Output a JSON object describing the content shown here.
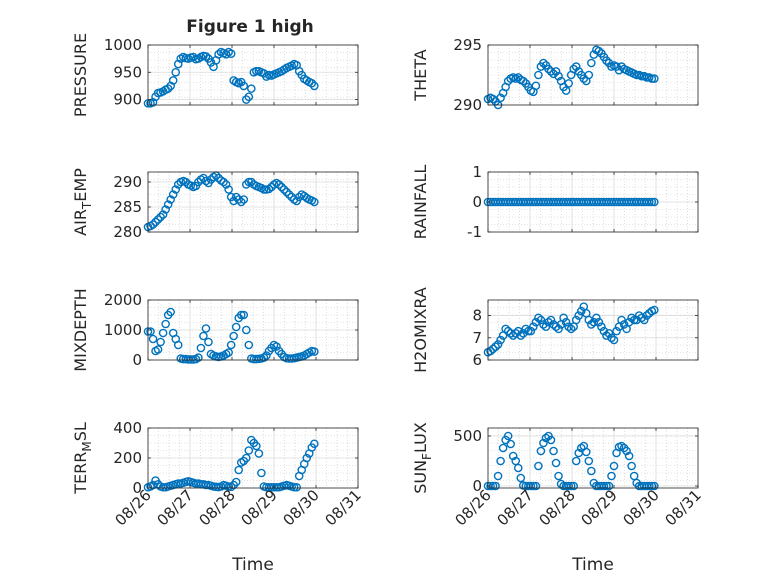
{
  "figure_title": "Figure 1 high",
  "x_tick_labels": [
    "08/26",
    "08/27",
    "08/28",
    "08/29",
    "08/30",
    "08/31"
  ],
  "x_axis_label": "Time",
  "marker_color": "#0072BD",
  "chart_data": [
    {
      "type": "scatter",
      "title": "Figure 1 high",
      "ylabel": "PRESSURE",
      "ylim": [
        890,
        1000
      ],
      "yticks": [
        900,
        950,
        1000
      ],
      "xticks": [
        0,
        1,
        2,
        3,
        4,
        5
      ],
      "xlim": [
        0,
        5
      ],
      "grid": true,
      "x": [
        0.0,
        0.06,
        0.12,
        0.18,
        0.24,
        0.3,
        0.36,
        0.42,
        0.48,
        0.54,
        0.6,
        0.66,
        0.72,
        0.78,
        0.84,
        0.9,
        0.96,
        1.02,
        1.08,
        1.14,
        1.2,
        1.26,
        1.32,
        1.38,
        1.44,
        1.5,
        1.56,
        1.62,
        1.68,
        1.74,
        1.8,
        1.86,
        1.92,
        1.98,
        2.04,
        2.1,
        2.16,
        2.22,
        2.28,
        2.34,
        2.4,
        2.46,
        2.52,
        2.58,
        2.64,
        2.7,
        2.76,
        2.82,
        2.88,
        2.94,
        3.0,
        3.06,
        3.12,
        3.18,
        3.24,
        3.3,
        3.36,
        3.42,
        3.48,
        3.54,
        3.6,
        3.66,
        3.72,
        3.78,
        3.84,
        3.9,
        3.96
      ],
      "y": [
        893,
        893,
        895,
        905,
        912,
        913,
        915,
        918,
        920,
        925,
        935,
        950,
        965,
        975,
        978,
        976,
        975,
        977,
        978,
        974,
        975,
        978,
        980,
        979,
        975,
        968,
        960,
        972,
        983,
        987,
        985,
        983,
        987,
        984,
        935,
        932,
        930,
        932,
        925,
        900,
        905,
        920,
        950,
        952,
        952,
        950,
        948,
        942,
        945,
        944,
        946,
        948,
        950,
        952,
        955,
        958,
        960,
        962,
        965,
        963,
        952,
        945,
        938,
        935,
        932,
        930,
        925
      ]
    },
    {
      "type": "scatter",
      "ylabel": "THETA",
      "ylim": [
        290,
        295
      ],
      "yticks": [
        290,
        295
      ],
      "xticks": [
        0,
        1,
        2,
        3,
        4,
        5
      ],
      "xlim": [
        0,
        5
      ],
      "grid": true,
      "x": [
        0.0,
        0.06,
        0.12,
        0.18,
        0.24,
        0.3,
        0.36,
        0.42,
        0.48,
        0.54,
        0.6,
        0.66,
        0.72,
        0.78,
        0.84,
        0.9,
        0.96,
        1.02,
        1.08,
        1.14,
        1.2,
        1.26,
        1.32,
        1.38,
        1.44,
        1.5,
        1.56,
        1.62,
        1.68,
        1.74,
        1.8,
        1.86,
        1.92,
        1.98,
        2.04,
        2.1,
        2.16,
        2.22,
        2.28,
        2.34,
        2.4,
        2.46,
        2.52,
        2.58,
        2.64,
        2.7,
        2.76,
        2.82,
        2.88,
        2.94,
        3.0,
        3.06,
        3.12,
        3.18,
        3.24,
        3.3,
        3.36,
        3.42,
        3.48,
        3.54,
        3.6,
        3.66,
        3.72,
        3.78,
        3.84,
        3.9,
        3.96
      ],
      "y": [
        290.5,
        290.6,
        290.5,
        290.3,
        290.0,
        290.6,
        291.0,
        291.5,
        292.0,
        292.2,
        292.3,
        292.2,
        292.3,
        292.1,
        292.0,
        291.8,
        291.5,
        291.2,
        291.1,
        291.6,
        292.5,
        293.2,
        293.5,
        293.3,
        293.0,
        292.8,
        292.6,
        292.8,
        292.4,
        292.0,
        291.5,
        291.2,
        291.8,
        292.5,
        293.0,
        293.2,
        292.8,
        292.5,
        292.2,
        292.0,
        292.5,
        293.5,
        294.2,
        294.6,
        294.5,
        294.3,
        294.0,
        293.7,
        293.5,
        293.2,
        293.3,
        293.2,
        292.9,
        293.2,
        293.0,
        292.9,
        292.8,
        292.7,
        292.6,
        292.5,
        292.5,
        292.4,
        292.4,
        292.3,
        292.3,
        292.2,
        292.2
      ]
    },
    {
      "type": "scatter",
      "ylabel": "AIR_TEMP",
      "ylim": [
        280,
        292
      ],
      "yticks": [
        280,
        285,
        290
      ],
      "xticks": [
        0,
        1,
        2,
        3,
        4,
        5
      ],
      "xlim": [
        0,
        5
      ],
      "grid": true,
      "x": [
        0.0,
        0.06,
        0.12,
        0.18,
        0.24,
        0.3,
        0.36,
        0.42,
        0.48,
        0.54,
        0.6,
        0.66,
        0.72,
        0.78,
        0.84,
        0.9,
        0.96,
        1.02,
        1.08,
        1.14,
        1.2,
        1.26,
        1.32,
        1.38,
        1.44,
        1.5,
        1.56,
        1.62,
        1.68,
        1.74,
        1.8,
        1.86,
        1.92,
        1.98,
        2.04,
        2.1,
        2.16,
        2.22,
        2.28,
        2.34,
        2.4,
        2.46,
        2.52,
        2.58,
        2.64,
        2.7,
        2.76,
        2.82,
        2.88,
        2.94,
        3.0,
        3.06,
        3.12,
        3.18,
        3.24,
        3.3,
        3.36,
        3.42,
        3.48,
        3.54,
        3.6,
        3.66,
        3.72,
        3.78,
        3.84,
        3.9,
        3.96
      ],
      "y": [
        281.0,
        281.2,
        281.5,
        282.0,
        282.5,
        283.0,
        283.5,
        284.5,
        285.5,
        286.5,
        287.5,
        288.5,
        289.5,
        290.0,
        290.2,
        290.0,
        289.5,
        289.3,
        289.0,
        289.2,
        290.0,
        290.5,
        290.8,
        290.2,
        289.8,
        290.5,
        291.0,
        291.3,
        290.8,
        290.3,
        290.0,
        289.5,
        288.5,
        287.0,
        286.2,
        287.0,
        286.5,
        286.0,
        286.5,
        289.5,
        290.0,
        290.0,
        289.5,
        289.2,
        289.0,
        288.8,
        288.5,
        288.5,
        288.6,
        289.0,
        289.5,
        289.8,
        289.5,
        289.0,
        288.5,
        288.0,
        287.5,
        287.0,
        286.5,
        286.2,
        287.0,
        287.5,
        287.2,
        286.8,
        286.5,
        286.3,
        286.0
      ]
    },
    {
      "type": "scatter",
      "ylabel": "RAINFALL",
      "ylim": [
        -1,
        1
      ],
      "yticks": [
        -1,
        0,
        1
      ],
      "xticks": [
        0,
        1,
        2,
        3,
        4,
        5
      ],
      "xlim": [
        0,
        5
      ],
      "grid": true,
      "x": [
        0.0,
        0.06,
        0.12,
        0.18,
        0.24,
        0.3,
        0.36,
        0.42,
        0.48,
        0.54,
        0.6,
        0.66,
        0.72,
        0.78,
        0.84,
        0.9,
        0.96,
        1.02,
        1.08,
        1.14,
        1.2,
        1.26,
        1.32,
        1.38,
        1.44,
        1.5,
        1.56,
        1.62,
        1.68,
        1.74,
        1.8,
        1.86,
        1.92,
        1.98,
        2.04,
        2.1,
        2.16,
        2.22,
        2.28,
        2.34,
        2.4,
        2.46,
        2.52,
        2.58,
        2.64,
        2.7,
        2.76,
        2.82,
        2.88,
        2.94,
        3.0,
        3.06,
        3.12,
        3.18,
        3.24,
        3.3,
        3.36,
        3.42,
        3.48,
        3.54,
        3.6,
        3.66,
        3.72,
        3.78,
        3.84,
        3.9,
        3.96
      ],
      "y": [
        0,
        0,
        0,
        0,
        0,
        0,
        0,
        0,
        0,
        0,
        0,
        0,
        0,
        0,
        0,
        0,
        0,
        0,
        0,
        0,
        0,
        0,
        0,
        0,
        0,
        0,
        0,
        0,
        0,
        0,
        0,
        0,
        0,
        0,
        0,
        0,
        0,
        0,
        0,
        0,
        0,
        0,
        0,
        0,
        0,
        0,
        0,
        0,
        0,
        0,
        0,
        0,
        0,
        0,
        0,
        0,
        0,
        0,
        0,
        0,
        0,
        0,
        0,
        0,
        0,
        0,
        0
      ]
    },
    {
      "type": "scatter",
      "ylabel": "MIXDEPTH",
      "ylim": [
        0,
        2000
      ],
      "yticks": [
        0,
        1000,
        2000
      ],
      "xticks": [
        0,
        1,
        2,
        3,
        4,
        5
      ],
      "xlim": [
        0,
        5
      ],
      "grid": true,
      "x": [
        0.0,
        0.06,
        0.12,
        0.18,
        0.24,
        0.3,
        0.36,
        0.42,
        0.48,
        0.54,
        0.6,
        0.66,
        0.72,
        0.78,
        0.84,
        0.9,
        0.96,
        1.02,
        1.08,
        1.14,
        1.2,
        1.26,
        1.32,
        1.38,
        1.44,
        1.5,
        1.56,
        1.62,
        1.68,
        1.74,
        1.8,
        1.86,
        1.92,
        1.98,
        2.04,
        2.1,
        2.16,
        2.22,
        2.28,
        2.34,
        2.4,
        2.46,
        2.52,
        2.58,
        2.64,
        2.7,
        2.76,
        2.82,
        2.88,
        2.94,
        3.0,
        3.06,
        3.12,
        3.18,
        3.24,
        3.3,
        3.36,
        3.42,
        3.48,
        3.54,
        3.6,
        3.66,
        3.72,
        3.78,
        3.84,
        3.9,
        3.96
      ],
      "y": [
        950,
        950,
        700,
        300,
        350,
        600,
        900,
        1200,
        1500,
        1600,
        900,
        700,
        500,
        50,
        30,
        30,
        20,
        20,
        20,
        30,
        80,
        400,
        800,
        1050,
        600,
        200,
        150,
        120,
        100,
        120,
        150,
        200,
        250,
        500,
        800,
        1100,
        1400,
        1500,
        1500,
        1000,
        500,
        50,
        30,
        30,
        40,
        50,
        80,
        150,
        300,
        400,
        500,
        450,
        300,
        200,
        100,
        60,
        50,
        50,
        60,
        80,
        100,
        120,
        150,
        200,
        250,
        300,
        280
      ]
    },
    {
      "type": "scatter",
      "ylabel": "H2OMIXRA",
      "ylim": [
        6,
        8.7
      ],
      "yticks": [
        6,
        7,
        8
      ],
      "xticks": [
        0,
        1,
        2,
        3,
        4,
        5
      ],
      "xlim": [
        0,
        5
      ],
      "grid": true,
      "x": [
        0.0,
        0.06,
        0.12,
        0.18,
        0.24,
        0.3,
        0.36,
        0.42,
        0.48,
        0.54,
        0.6,
        0.66,
        0.72,
        0.78,
        0.84,
        0.9,
        0.96,
        1.02,
        1.08,
        1.14,
        1.2,
        1.26,
        1.32,
        1.38,
        1.44,
        1.5,
        1.56,
        1.62,
        1.68,
        1.74,
        1.8,
        1.86,
        1.92,
        1.98,
        2.04,
        2.1,
        2.16,
        2.22,
        2.28,
        2.34,
        2.4,
        2.46,
        2.52,
        2.58,
        2.64,
        2.7,
        2.76,
        2.82,
        2.88,
        2.94,
        3.0,
        3.06,
        3.12,
        3.18,
        3.24,
        3.3,
        3.36,
        3.42,
        3.48,
        3.54,
        3.6,
        3.66,
        3.72,
        3.78,
        3.84,
        3.9,
        3.96
      ],
      "y": [
        6.35,
        6.4,
        6.5,
        6.6,
        6.7,
        6.9,
        7.1,
        7.4,
        7.3,
        7.2,
        7.1,
        7.2,
        7.3,
        7.1,
        7.2,
        7.4,
        7.3,
        7.3,
        7.5,
        7.7,
        7.9,
        7.8,
        7.6,
        7.5,
        7.7,
        7.8,
        7.6,
        7.5,
        7.4,
        7.6,
        7.9,
        7.7,
        7.5,
        7.4,
        7.5,
        7.8,
        8.0,
        8.2,
        8.4,
        8.1,
        7.8,
        7.6,
        7.7,
        7.9,
        7.7,
        7.5,
        7.3,
        7.1,
        7.2,
        7.0,
        6.9,
        7.3,
        7.5,
        7.8,
        7.6,
        7.4,
        7.7,
        7.9,
        7.8,
        7.8,
        8.0,
        7.9,
        7.8,
        8.0,
        8.1,
        8.2,
        8.25
      ]
    },
    {
      "type": "scatter",
      "ylabel": "TERR_MSL",
      "ylim": [
        0,
        400
      ],
      "yticks": [
        0,
        200,
        400
      ],
      "xticks": [
        0,
        1,
        2,
        3,
        4,
        5
      ],
      "xlim": [
        0,
        5
      ],
      "grid": true,
      "x": [
        0.0,
        0.06,
        0.12,
        0.18,
        0.24,
        0.3,
        0.36,
        0.42,
        0.48,
        0.54,
        0.6,
        0.66,
        0.72,
        0.78,
        0.84,
        0.9,
        0.96,
        1.02,
        1.08,
        1.14,
        1.2,
        1.26,
        1.32,
        1.38,
        1.44,
        1.5,
        1.56,
        1.62,
        1.68,
        1.74,
        1.8,
        1.86,
        1.92,
        1.98,
        2.04,
        2.1,
        2.16,
        2.22,
        2.28,
        2.34,
        2.4,
        2.46,
        2.52,
        2.58,
        2.64,
        2.7,
        2.76,
        2.82,
        2.88,
        2.94,
        3.0,
        3.06,
        3.12,
        3.18,
        3.24,
        3.3,
        3.36,
        3.42,
        3.48,
        3.54,
        3.6,
        3.66,
        3.72,
        3.78,
        3.84,
        3.9,
        3.96
      ],
      "y": [
        5,
        10,
        20,
        50,
        25,
        10,
        5,
        5,
        10,
        15,
        20,
        25,
        30,
        30,
        35,
        40,
        45,
        40,
        35,
        30,
        30,
        25,
        25,
        20,
        20,
        15,
        10,
        8,
        6,
        10,
        20,
        15,
        10,
        8,
        20,
        40,
        120,
        170,
        180,
        200,
        250,
        320,
        300,
        280,
        230,
        100,
        10,
        5,
        5,
        5,
        5,
        5,
        5,
        10,
        15,
        20,
        15,
        10,
        5,
        5,
        80,
        120,
        160,
        200,
        230,
        270,
        295
      ]
    },
    {
      "type": "scatter",
      "ylabel": "SUN_FLUX",
      "ylim": [
        -20,
        580
      ],
      "yticks": [
        0,
        500
      ],
      "xticks": [
        0,
        1,
        2,
        3,
        4,
        5
      ],
      "xlim": [
        0,
        5
      ],
      "grid": true,
      "x": [
        0.0,
        0.06,
        0.12,
        0.18,
        0.24,
        0.3,
        0.36,
        0.42,
        0.48,
        0.54,
        0.6,
        0.66,
        0.72,
        0.78,
        0.84,
        0.9,
        0.96,
        1.02,
        1.08,
        1.14,
        1.2,
        1.26,
        1.32,
        1.38,
        1.44,
        1.5,
        1.56,
        1.62,
        1.68,
        1.74,
        1.8,
        1.86,
        1.92,
        1.98,
        2.04,
        2.1,
        2.16,
        2.22,
        2.28,
        2.34,
        2.4,
        2.46,
        2.52,
        2.58,
        2.64,
        2.7,
        2.76,
        2.82,
        2.88,
        2.94,
        3.0,
        3.06,
        3.12,
        3.18,
        3.24,
        3.3,
        3.36,
        3.42,
        3.48,
        3.54,
        3.6,
        3.66,
        3.72,
        3.78,
        3.84,
        3.9,
        3.96
      ],
      "y": [
        0,
        0,
        0,
        0,
        100,
        250,
        380,
        460,
        500,
        420,
        300,
        250,
        180,
        80,
        5,
        0,
        0,
        0,
        0,
        0,
        200,
        350,
        430,
        480,
        500,
        460,
        350,
        230,
        100,
        20,
        0,
        0,
        0,
        0,
        0,
        250,
        330,
        380,
        400,
        340,
        250,
        150,
        30,
        0,
        0,
        0,
        0,
        0,
        0,
        100,
        200,
        330,
        390,
        400,
        380,
        350,
        300,
        200,
        100,
        30,
        0,
        0,
        0,
        0,
        0,
        0,
        0
      ]
    }
  ]
}
